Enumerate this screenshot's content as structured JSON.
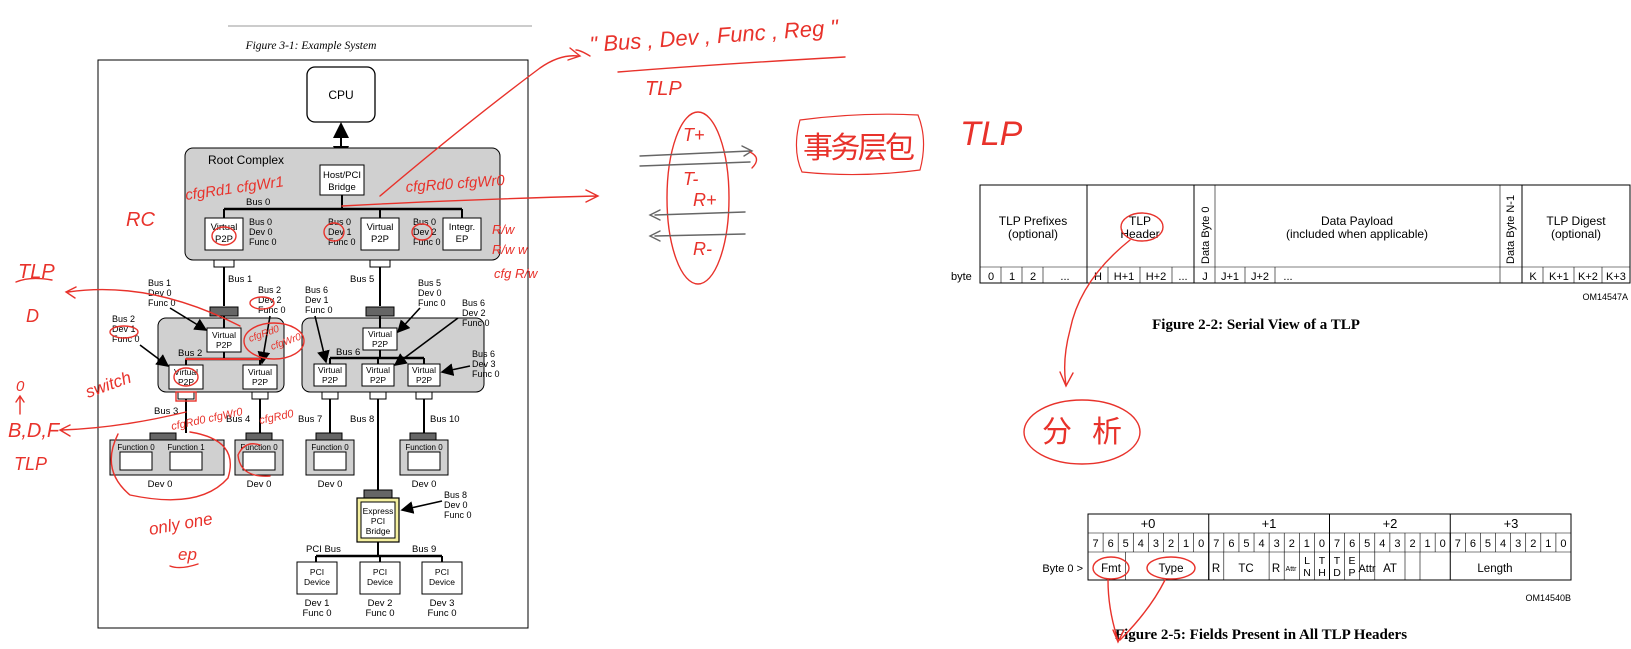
{
  "left_figure": {
    "caption": "Figure 3-1: Example System",
    "cpu": "CPU",
    "root_complex": "Root Complex",
    "host_bridge": [
      "Host/PCI",
      "Bridge"
    ],
    "bus0": "Bus 0",
    "rc_p2p": [
      {
        "label": [
          "Virtual",
          "P2P"
        ],
        "bdf": [
          "Bus 0",
          "Dev 0",
          "Func 0"
        ]
      },
      {
        "label": [
          "Virtual",
          "P2P"
        ],
        "bdf": [
          "Bus 0",
          "Dev 1",
          "Func 0"
        ]
      }
    ],
    "integr_ep": {
      "label": [
        "Integr.",
        "EP"
      ],
      "bdf": [
        "Bus 0",
        "Dev 2",
        "Func 0"
      ]
    },
    "bus1": "Bus 1",
    "bus5": "Bus 5",
    "sw1_up_bdf": [
      "Bus 1",
      "Dev 0",
      "Func 0"
    ],
    "sw1_down2_bdf": [
      "Bus 2",
      "Dev 2",
      "Func 0"
    ],
    "sw1_down1_bdf": [
      "Bus 2",
      "Dev 1",
      "Func 0"
    ],
    "sw2_left_bdf": [
      "Bus 6",
      "Dev 1",
      "Func 0"
    ],
    "sw2_up_bdf": [
      "Bus 5",
      "Dev 0",
      "Func 0"
    ],
    "sw2_mid_bdf": [
      "Bus 6",
      "Dev 2",
      "Func 0"
    ],
    "sw2_right_bdf": [
      "Bus 6",
      "Dev 3",
      "Func 0"
    ],
    "virtual_p2p": [
      "Virtual",
      "P2P"
    ],
    "bus2": "Bus 2",
    "bus6": "Bus 6",
    "bus3": "Bus 3",
    "bus4": "Bus 4",
    "bus7": "Bus 7",
    "bus8": "Bus 8",
    "bus10": "Bus 10",
    "function0": "Function 0",
    "function1": "Function 1",
    "dev0": "Dev 0",
    "express_bridge": [
      "Express",
      "PCI",
      "Bridge"
    ],
    "bridge_bdf": [
      "Bus 8",
      "Dev 0",
      "Func 0"
    ],
    "pci_bus": "PCI Bus",
    "bus9": "Bus 9",
    "pci_device": [
      "PCI",
      "Device"
    ],
    "pci_devs": [
      [
        "Dev 1",
        "Func 0"
      ],
      [
        "Dev 2",
        "Func 0"
      ],
      [
        "Dev 3",
        "Func 0"
      ]
    ]
  },
  "tlp_serial": {
    "cells": [
      {
        "lines": [
          "TLP Prefixes",
          "(optional)"
        ]
      },
      {
        "lines": [
          "TLP",
          "Header"
        ]
      },
      {
        "lines": [
          "Data Payload",
          "(included when applicable)"
        ]
      },
      {
        "lines": [
          "TLP Digest",
          "(optional)"
        ]
      }
    ],
    "data_byte_0": "Data Byte 0",
    "data_byte_n1": "Data Byte N-1",
    "byte_label": "byte",
    "bytes_a": [
      "0",
      "1",
      "2",
      "..."
    ],
    "bytes_b": [
      "H",
      "H+1",
      "H+2",
      "..."
    ],
    "bytes_c": [
      "J",
      "J+1",
      "J+2",
      "..."
    ],
    "bytes_d": [
      "K",
      "K+1",
      "K+2",
      "K+3"
    ],
    "om_code": "OM14547A",
    "caption": "Figure 2-2:  Serial View of a TLP"
  },
  "tlp_header": {
    "byte_groups": [
      "+0",
      "+1",
      "+2",
      "+3"
    ],
    "bit_labels": [
      "7",
      "6",
      "5",
      "4",
      "3",
      "2",
      "1",
      "0"
    ],
    "row_label": "Byte 0 >",
    "fields": {
      "fmt": "Fmt",
      "type": "Type",
      "r1": "R",
      "tc": "TC",
      "r2": "R",
      "attr_small": "Attr",
      "ln": [
        "L",
        "N"
      ],
      "th": [
        "T",
        "H"
      ],
      "td": [
        "T",
        "D"
      ],
      "ep": [
        "E",
        "P"
      ],
      "attr": "Attr",
      "at": "AT",
      "length": "Length"
    },
    "om_code": "OM14540B",
    "caption": "Figure 2-5:  Fields Present in All TLP Headers"
  },
  "annotations": {
    "top_quote": "\" Bus , Dev , Func , Reg \"",
    "tlp_under_quote": "TLP",
    "t_plus": "T+",
    "t_minus": "T-",
    "r_plus": "R+",
    "r_minus": "R-",
    "chinese_label": "事务层包",
    "tlp_big": "TLP",
    "cfgrd1_cfgwr1": "cfgRd1  cfgWr1",
    "cfgrd0_cfgwr0": "cfgRd0  cfgWr0",
    "rc": "RC",
    "rw1": "R/w",
    "rw2": "R/w  w",
    "cfg_rw": "cfg R/w",
    "tlp_left": "TLP",
    "d_left": "D",
    "zero": "0",
    "bdf": "B,D,F",
    "tlp_left2": "TLP",
    "switch": "switch",
    "cfgrd0_sw": "cfgRd0",
    "cfgwr0_sw": "cfgWr0",
    "cfgrd0_cfgwr0_b3": "cfgRd0  cfgWr0",
    "cfgrd0_b4": "cfgRd0",
    "only_one": "only one",
    "ep": "ep",
    "analysis": "分析"
  }
}
